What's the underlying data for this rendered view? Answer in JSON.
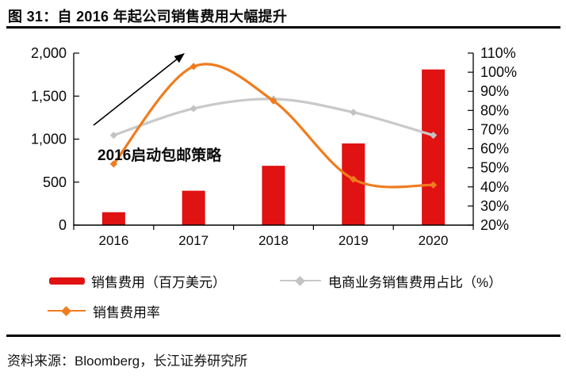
{
  "header": {
    "title": "图 31：自 2016 年起公司销售费用大幅提升"
  },
  "chart_data": {
    "type": "combo",
    "categories": [
      "2016",
      "2017",
      "2018",
      "2019",
      "2020"
    ],
    "series": [
      {
        "id": "sales-expense-bars",
        "name": "销售费用（百万美元）",
        "type": "bar",
        "axis": "left",
        "color": "#E01212",
        "values": [
          150,
          400,
          690,
          950,
          1810
        ]
      },
      {
        "id": "ecommerce-expense-ratio-line",
        "name": "电商业务销售费用占比（%）",
        "type": "line",
        "axis": "right",
        "color": "#C9C9C9",
        "marker_color": "#C2C2C2",
        "values": [
          67,
          81,
          86,
          79,
          67
        ]
      },
      {
        "id": "sales-expense-ratio-line",
        "name": "销售费用率",
        "type": "line",
        "axis": "right",
        "color": "#F07C1E",
        "marker_color": "#F07C1E",
        "values": [
          52,
          103,
          85,
          44,
          41
        ]
      }
    ],
    "left_axis": {
      "min": 0,
      "max": 2000,
      "step": 500,
      "tick_labels": [
        "0",
        "500",
        "1,000",
        "1,500",
        "2,000"
      ]
    },
    "right_axis": {
      "min": 20,
      "max": 110,
      "step": 10,
      "tick_labels": [
        "20%",
        "30%",
        "40%",
        "50%",
        "60%",
        "70%",
        "80%",
        "90%",
        "100%",
        "110%"
      ]
    },
    "annotation": {
      "text": "2016启动包邮策略"
    },
    "legend_position": "bottom",
    "grid": false,
    "axis_color": "#000000",
    "annotation_arrow_color": "#000000"
  },
  "footer": {
    "source": "资料来源：Bloomberg，长江证券研究所"
  }
}
